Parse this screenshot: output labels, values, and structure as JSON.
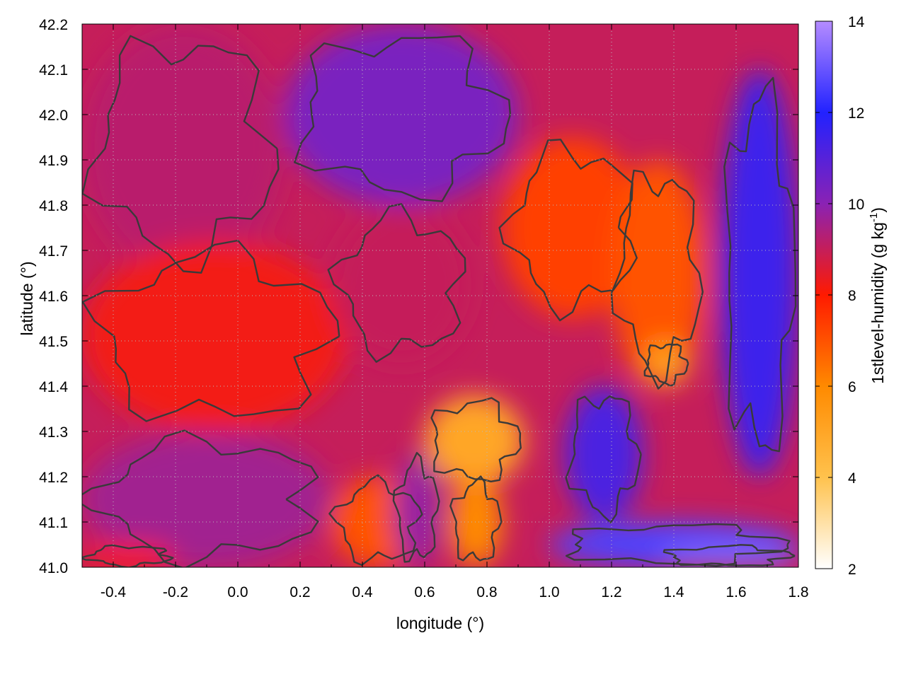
{
  "chart_data": {
    "type": "heatmap",
    "title": "",
    "xlabel": "longitude (°)",
    "ylabel": "latitude (°)",
    "colorbar_label_main": "1stlevel-humidity (g kg",
    "colorbar_label_sup": "-1",
    "colorbar_label_close": ")",
    "xlim": [
      -0.5,
      1.8
    ],
    "ylim": [
      41.0,
      42.2
    ],
    "x_ticks": [
      -0.4,
      -0.2,
      0.0,
      0.2,
      0.4,
      0.6,
      0.8,
      1.0,
      1.2,
      1.4,
      1.6,
      1.8
    ],
    "x_tick_labels": [
      "-0.4",
      "-0.2",
      "0.0",
      "0.2",
      "0.4",
      "0.6",
      "0.8",
      "1.0",
      "1.2",
      "1.4",
      "1.6",
      "1.8"
    ],
    "y_ticks": [
      41.0,
      41.1,
      41.2,
      41.3,
      41.4,
      41.5,
      41.6,
      41.7,
      41.8,
      41.9,
      42.0,
      42.1,
      42.2
    ],
    "y_tick_labels": [
      "41.0",
      "41.1",
      "41.2",
      "41.3",
      "41.4",
      "41.5",
      "41.6",
      "41.7",
      "41.8",
      "41.9",
      "42.0",
      "42.1",
      "42.2"
    ],
    "colorbar_range": [
      2,
      14
    ],
    "colorbar_ticks": [
      2,
      4,
      6,
      8,
      10,
      12,
      14
    ],
    "colorbar_tick_labels": [
      "2",
      "4",
      "6",
      "8",
      "10",
      "12",
      "14"
    ],
    "colorbar_stops": [
      {
        "value": 2,
        "color": "#ffffff"
      },
      {
        "value": 4,
        "color": "#ffc24d"
      },
      {
        "value": 6,
        "color": "#ff8a00"
      },
      {
        "value": 8,
        "color": "#ff1a00"
      },
      {
        "value": 10,
        "color": "#8a22b4"
      },
      {
        "value": 12,
        "color": "#2222ff"
      },
      {
        "value": 14,
        "color": "#b58cff"
      }
    ],
    "grid": true,
    "contour_color": "#3a3a3a",
    "field_regions": [
      {
        "note": "region",
        "value": 9.2,
        "x": [
          -0.5,
          0.15
        ],
        "y": [
          41.65,
          42.2
        ]
      },
      {
        "note": "region",
        "value": 10.3,
        "x": [
          0.15,
          0.9
        ],
        "y": [
          41.8,
          42.2
        ]
      },
      {
        "note": "region",
        "value": 11.5,
        "x": [
          1.55,
          1.8
        ],
        "y": [
          41.2,
          42.1
        ]
      },
      {
        "note": "region",
        "value": 8.2,
        "x": [
          -0.5,
          0.35
        ],
        "y": [
          41.3,
          41.72
        ]
      },
      {
        "note": "region",
        "value": 9.0,
        "x": [
          0.3,
          0.75
        ],
        "y": [
          41.45,
          41.8
        ]
      },
      {
        "note": "region",
        "value": 7.3,
        "x": [
          0.85,
          1.3
        ],
        "y": [
          41.55,
          41.95
        ]
      },
      {
        "note": "region",
        "value": 7.0,
        "x": [
          1.2,
          1.5
        ],
        "y": [
          41.4,
          41.9
        ]
      },
      {
        "note": "region",
        "value": 5.3,
        "x": [
          1.3,
          1.45
        ],
        "y": [
          41.4,
          41.5
        ]
      },
      {
        "note": "region",
        "value": 5.0,
        "x": [
          0.6,
          0.92
        ],
        "y": [
          41.18,
          41.38
        ]
      },
      {
        "note": "region",
        "value": 6.0,
        "x": [
          0.68,
          0.85
        ],
        "y": [
          41.0,
          41.2
        ]
      },
      {
        "note": "region",
        "value": 7.0,
        "x": [
          0.3,
          0.6
        ],
        "y": [
          41.0,
          41.2
        ]
      },
      {
        "note": "region",
        "value": 9.6,
        "x": [
          -0.5,
          0.3
        ],
        "y": [
          41.0,
          41.3
        ]
      },
      {
        "note": "region",
        "value": 8.0,
        "x": [
          -0.5,
          -0.2
        ],
        "y": [
          41.0,
          41.05
        ]
      },
      {
        "note": "region",
        "value": 11.2,
        "x": [
          1.05,
          1.3
        ],
        "y": [
          41.1,
          41.4
        ]
      },
      {
        "note": "region",
        "value": 12.6,
        "x": [
          1.0,
          1.8
        ],
        "y": [
          41.0,
          41.1
        ]
      },
      {
        "note": "region",
        "value": 13.3,
        "x": [
          1.35,
          1.8
        ],
        "y": [
          41.0,
          41.05
        ]
      },
      {
        "note": "region",
        "value": 9.8,
        "x": [
          0.5,
          0.65
        ],
        "y": [
          41.0,
          41.25
        ]
      }
    ]
  }
}
